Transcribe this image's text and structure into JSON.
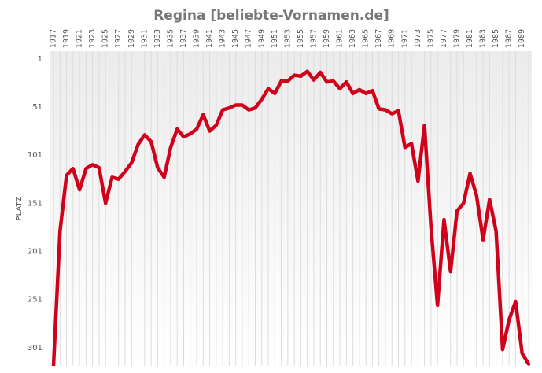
{
  "chart_data": {
    "type": "line",
    "title": "Regina [beliebte-Vornamen.de]",
    "y_label": "PLATZ",
    "x": [
      1917,
      1918,
      1919,
      1920,
      1921,
      1922,
      1923,
      1924,
      1925,
      1926,
      1927,
      1928,
      1929,
      1930,
      1931,
      1932,
      1933,
      1934,
      1935,
      1936,
      1937,
      1938,
      1939,
      1940,
      1941,
      1942,
      1943,
      1944,
      1945,
      1946,
      1947,
      1948,
      1949,
      1950,
      1951,
      1952,
      1953,
      1954,
      1955,
      1956,
      1957,
      1958,
      1959,
      1960,
      1961,
      1962,
      1963,
      1964,
      1965,
      1966,
      1967,
      1968,
      1969,
      1970,
      1971,
      1972,
      1973,
      1974,
      1975,
      1976,
      1977,
      1978,
      1979,
      1980,
      1981,
      1982,
      1983,
      1984,
      1985,
      1986,
      1987,
      1988,
      1989,
      1990
    ],
    "series": [
      {
        "name": "Regina",
        "color": "#d0021b",
        "values": [
          320,
          180,
          122,
          115,
          137,
          115,
          111,
          114,
          151,
          124,
          126,
          118,
          109,
          90,
          80,
          87,
          114,
          124,
          93,
          74,
          82,
          79,
          74,
          59,
          76,
          70,
          54,
          52,
          49,
          49,
          54,
          52,
          43,
          32,
          37,
          24,
          24,
          18,
          19,
          14,
          23,
          15,
          25,
          24,
          32,
          25,
          37,
          33,
          37,
          34,
          53,
          54,
          58,
          55,
          93,
          89,
          128,
          70,
          176,
          257,
          168,
          222,
          159,
          151,
          120,
          143,
          189,
          147,
          180,
          303,
          272,
          253,
          307,
          318
        ]
      }
    ],
    "xlim": [
      1917,
      1990
    ],
    "xticks": [
      1917,
      1919,
      1921,
      1923,
      1925,
      1927,
      1929,
      1931,
      1933,
      1935,
      1937,
      1939,
      1941,
      1943,
      1945,
      1947,
      1949,
      1951,
      1953,
      1955,
      1957,
      1959,
      1961,
      1963,
      1965,
      1967,
      1969,
      1971,
      1973,
      1975,
      1977,
      1979,
      1981,
      1983,
      1985,
      1987,
      1989
    ],
    "ylim": [
      320,
      -7
    ],
    "yticks": [
      1,
      51,
      101,
      151,
      201,
      251,
      301
    ],
    "grid": true
  }
}
